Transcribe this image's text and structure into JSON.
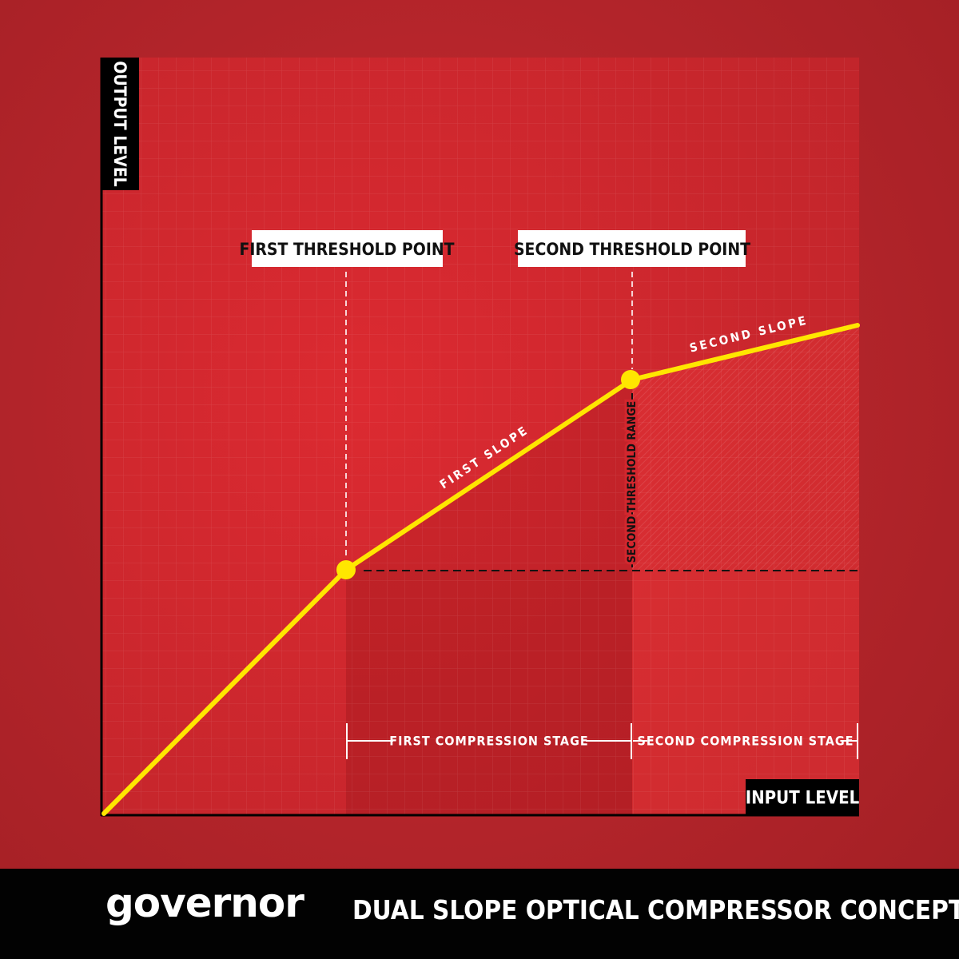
{
  "axes": {
    "y_label": "OUTPUT LEVEL",
    "x_label": "INPUT LEVEL"
  },
  "thresholds": {
    "first_label": "FIRST THRESHOLD POINT",
    "second_label": "SECOND THRESHOLD POINT",
    "range_label": "SECOND THRESHOLD RANGE"
  },
  "slopes": {
    "first_label": "FIRST SLOPE",
    "second_label": "SECOND SLOPE"
  },
  "stages": {
    "first_label": "FIRST COMPRESSION STAGE",
    "second_label": "SECOND COMPRESSION STAGE"
  },
  "footer": {
    "brand": "governor",
    "caption": "DUAL SLOPE OPTICAL COMPRESSOR CONCEPT"
  },
  "colors": {
    "background": "#b2242a",
    "panel": "#d3272e",
    "curve": "#ffe600",
    "axis": "#000000",
    "footer": "#020202",
    "label_box": "#ffffff"
  }
}
